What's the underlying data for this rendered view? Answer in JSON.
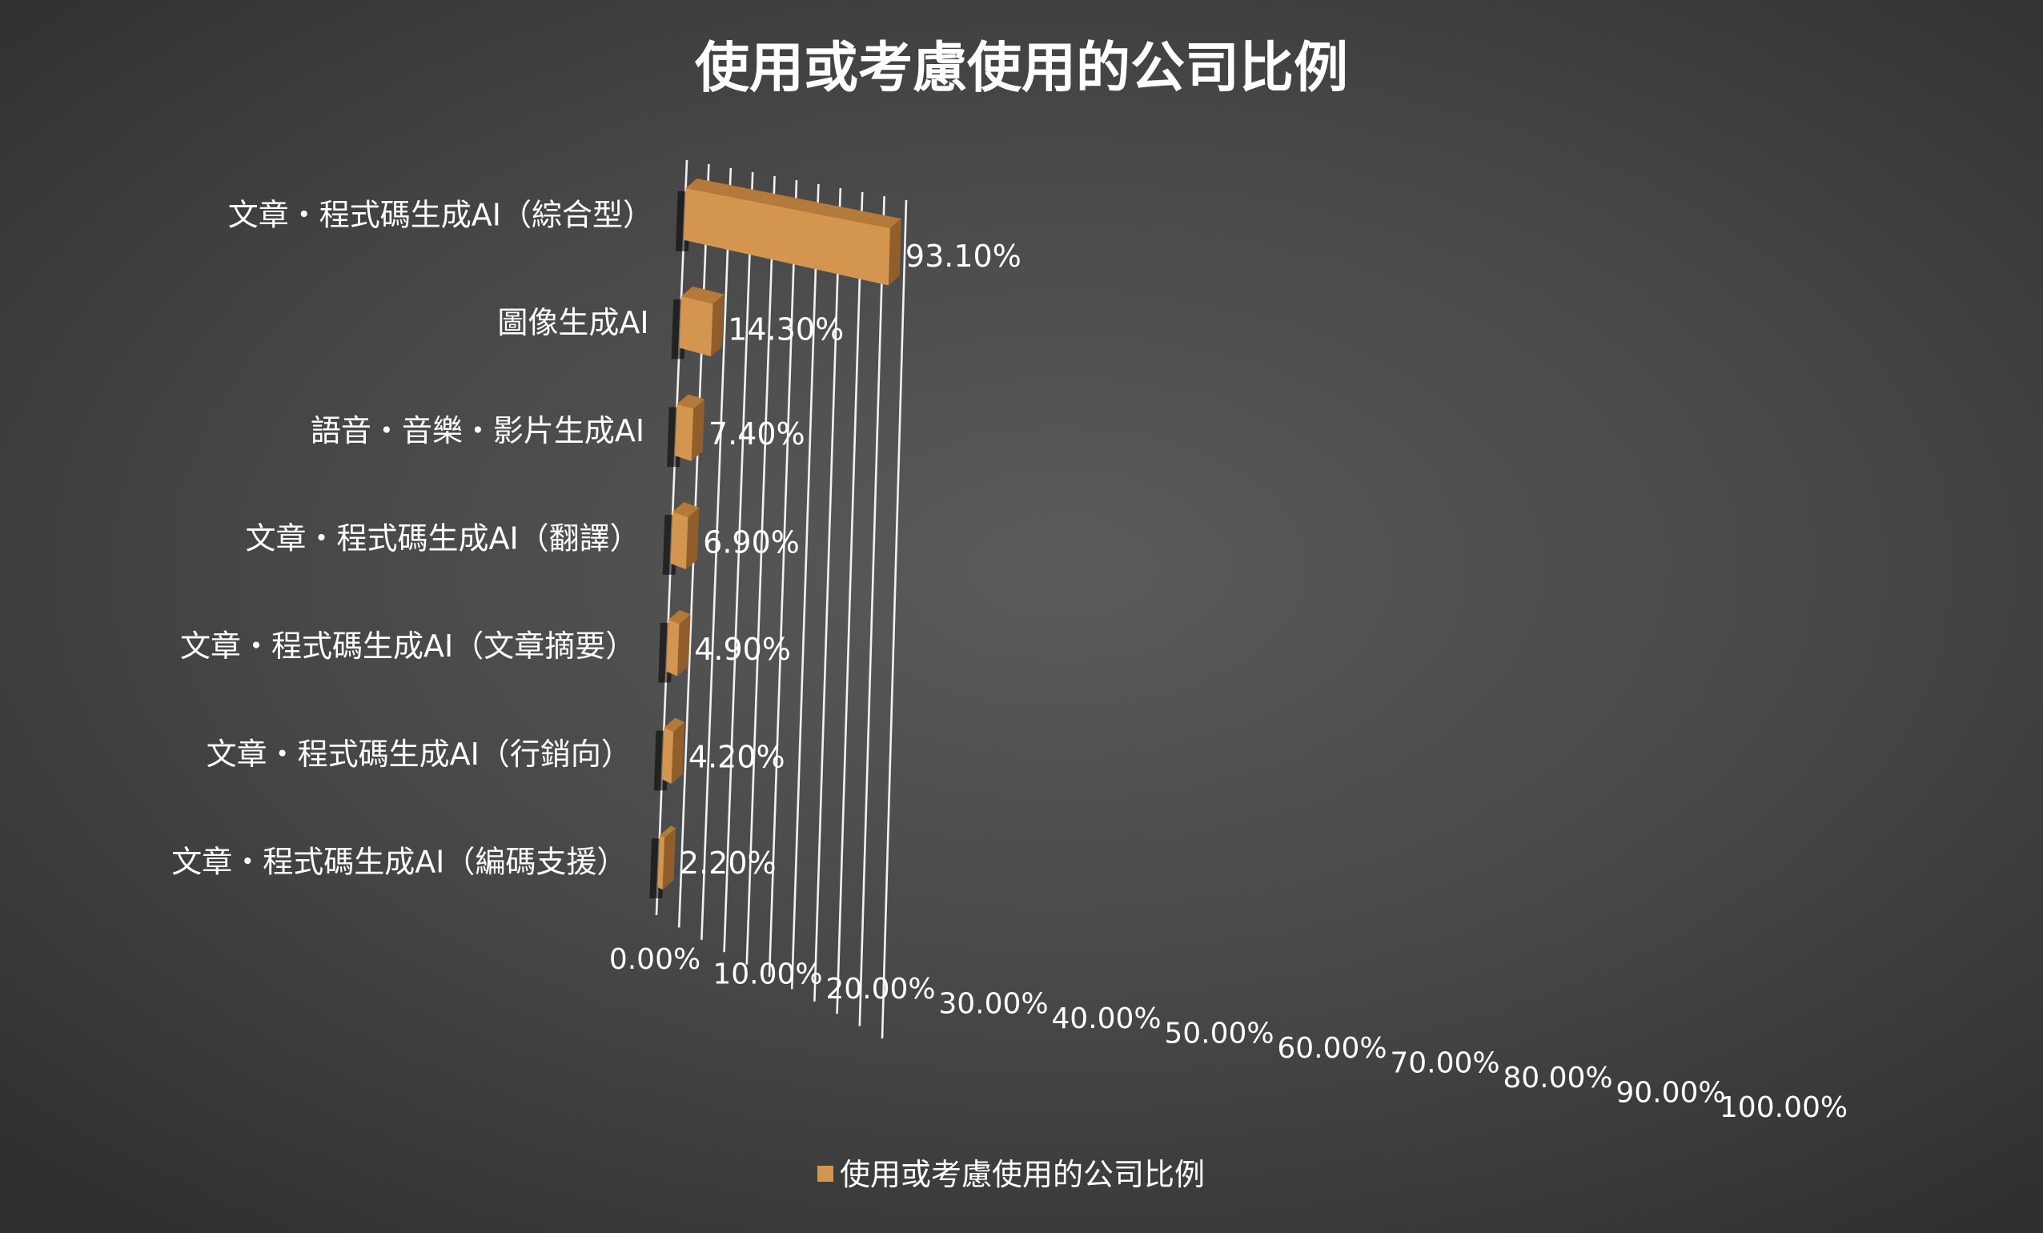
{
  "chart_data": {
    "type": "bar",
    "orientation": "horizontal",
    "style": "3d",
    "title": "使用或考慮使用的公司比例",
    "categories": [
      "文章・程式碼生成AI（綜合型）",
      "圖像生成AI",
      "語音・音樂・影片生成AI",
      "文章・程式碼生成AI（翻譯）",
      "文章・程式碼生成AI（文章摘要）",
      "文章・程式碼生成AI（行銷向）",
      "文章・程式碼生成AI（編碼支援）"
    ],
    "series": [
      {
        "name": "使用或考慮使用的公司比例",
        "values": [
          93.1,
          14.3,
          7.4,
          6.9,
          4.9,
          4.2,
          2.2
        ],
        "labels": [
          "93.10%",
          "14.30%",
          "7.40%",
          "6.90%",
          "4.90%",
          "4.20%",
          "2.20%"
        ],
        "color": "#d4964f"
      }
    ],
    "xlim": [
      0,
      100
    ],
    "xticks": [
      0,
      10,
      20,
      30,
      40,
      50,
      60,
      70,
      80,
      90,
      100
    ],
    "xtick_labels": [
      "0.00%",
      "10.00%",
      "20.00%",
      "30.00%",
      "40.00%",
      "50.00%",
      "60.00%",
      "70.00%",
      "80.00%",
      "90.00%",
      "100.00%"
    ],
    "grid": true,
    "legend": {
      "position": "bottom",
      "entries": [
        "使用或考慮使用的公司比例"
      ]
    },
    "colors": {
      "bar_front": "#d4964f",
      "bar_top": "#b47a3a",
      "bar_side": "#8f5e2a",
      "text": "#ffffff",
      "grid": "#f2f2f2"
    }
  }
}
